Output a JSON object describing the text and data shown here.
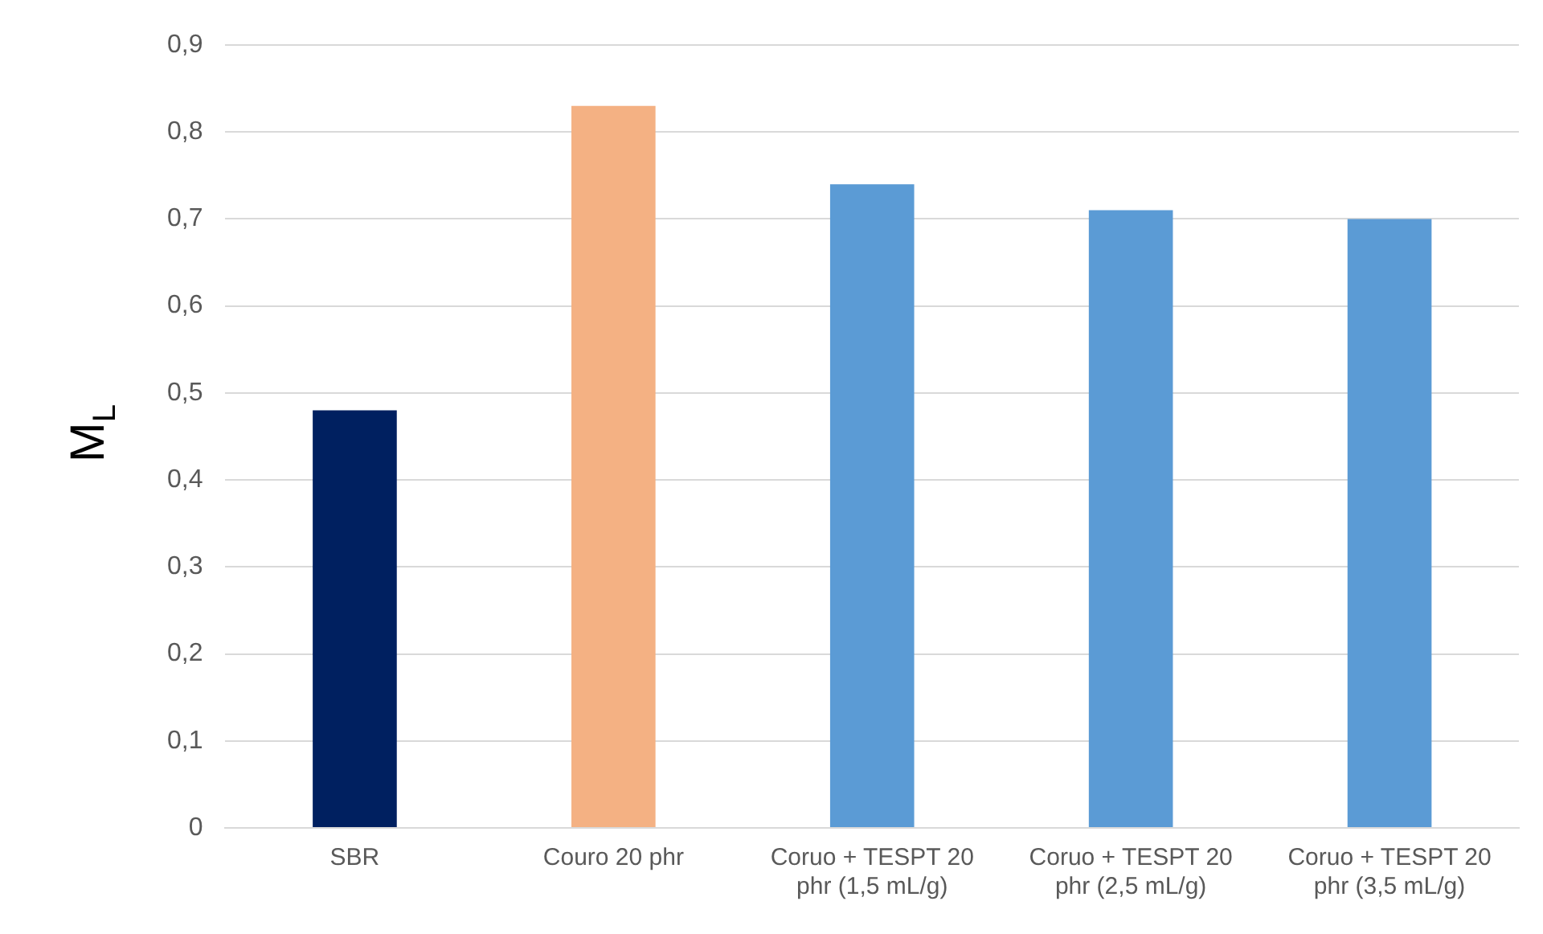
{
  "chart_data": {
    "type": "bar",
    "ylabel": "M$_{L}$",
    "categories": [
      "SBR",
      "Couro 20 phr",
      "Coruo + TESPT 20 phr (1,5 mL/g)",
      "Coruo + TESPT 20 phr (2,5 mL/g)",
      "Coruo + TESPT 20 phr (3,5 mL/g)"
    ],
    "values": [
      0.48,
      0.83,
      0.74,
      0.71,
      0.7
    ],
    "colors": [
      "#002060",
      "#f4b183",
      "#5b9bd5",
      "#5b9bd5",
      "#5b9bd5"
    ],
    "ylim": [
      0,
      0.9
    ],
    "yticks": [
      0,
      {
        "value": 0.1,
        "label": "0,1"
      },
      {
        "value": 0.2,
        "label": "0,2"
      },
      {
        "value": 0.3,
        "label": "0,3"
      },
      {
        "value": 0.4,
        "label": "0,4"
      },
      {
        "value": 0.5,
        "label": "0,5"
      },
      {
        "value": 0.6,
        "label": "0,6"
      },
      {
        "value": 0.7,
        "label": "0,7"
      },
      {
        "value": 0.8,
        "label": "0,8"
      },
      {
        "value": 0.9,
        "label": "0,9"
      }
    ],
    "grid": "y",
    "legend": false
  }
}
